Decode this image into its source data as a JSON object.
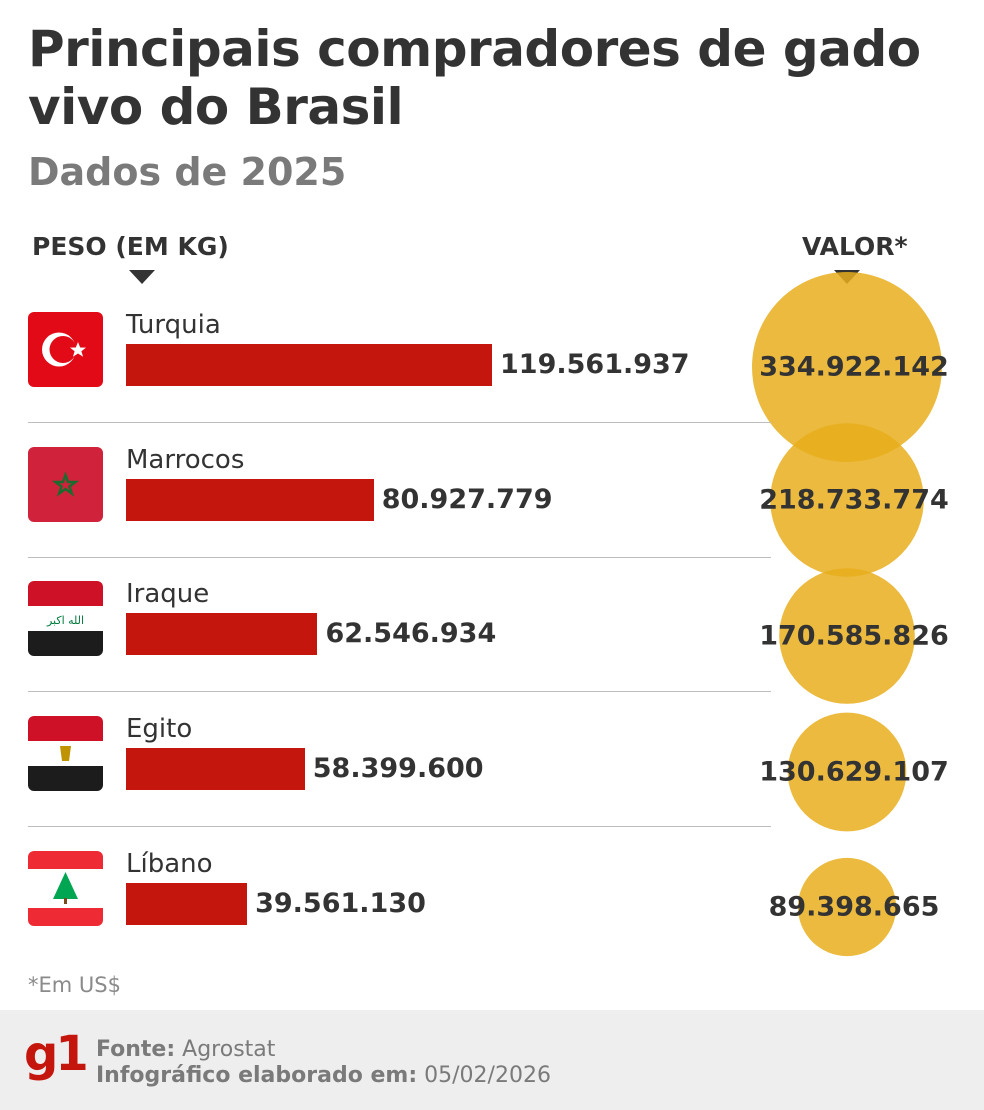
{
  "header": {
    "title": "Principais compradores de gado vivo do Brasil",
    "subtitle": "Dados de 2025"
  },
  "columns": {
    "weight": "PESO (EM KG)",
    "value": "VALOR*"
  },
  "colors": {
    "bar": "#c4160c",
    "bubble": "#e8ae1c",
    "text": "#333333"
  },
  "chart_data": {
    "type": "bar",
    "categories": [
      "Turquia",
      "Marrocos",
      "Iraque",
      "Egito",
      "Líbano"
    ],
    "flags": [
      "turkey-flag",
      "morocco-flag",
      "iraq-flag",
      "egypt-flag",
      "lebanon-flag"
    ],
    "series": [
      {
        "name": "PESO (EM KG)",
        "values": [
          119561937,
          80927779,
          62546934,
          58399600,
          39561130
        ],
        "labels": [
          "119.561.937",
          "80.927.779",
          "62.546.934",
          "58.399.600",
          "39.561.130"
        ],
        "mark": "bar"
      },
      {
        "name": "VALOR*",
        "values": [
          334922142,
          218733774,
          170585826,
          130629107,
          89398665
        ],
        "labels": [
          "334.922.142",
          "218.733.774",
          "170.585.826",
          "130.629.107",
          "89.398.665"
        ],
        "mark": "bubble"
      }
    ]
  },
  "note": "*Em US$",
  "footer": {
    "logo": "g1",
    "source_label": "Fonte:",
    "source": "Agrostat",
    "date_label": "Infográfico elaborado em:",
    "date": "05/02/2026"
  }
}
